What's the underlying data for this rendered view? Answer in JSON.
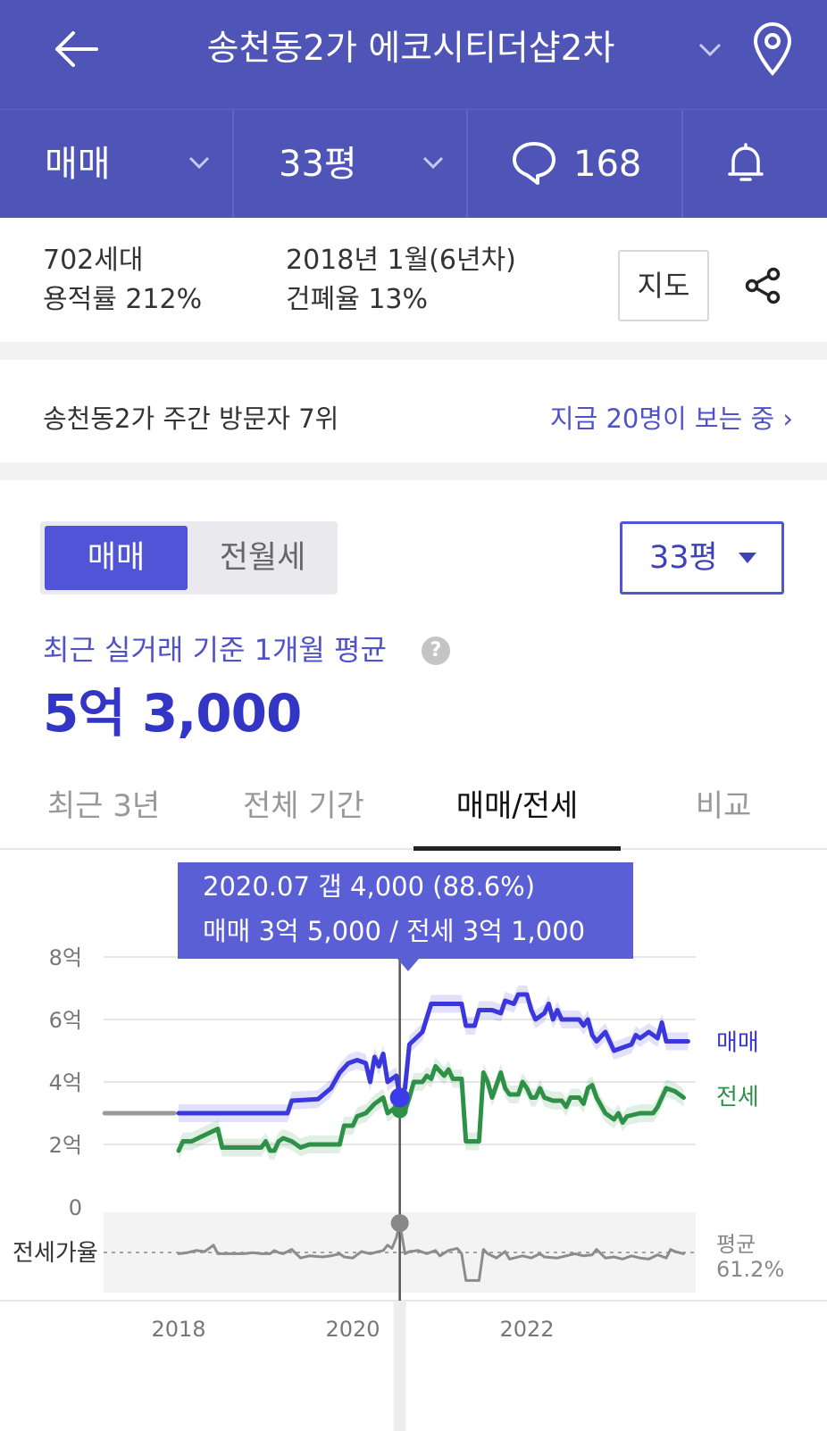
{
  "header": {
    "title": "송천동2가 에코시티더샵2차",
    "back_icon": "arrow-left-icon",
    "dropdown_icon": "chevron-down-icon",
    "location_icon": "location-pin-icon"
  },
  "subbar": {
    "trade_type": "매매",
    "area": "33평",
    "comment_count": "168",
    "comment_icon": "speech-bubble-icon",
    "alarm_icon": "bell-icon"
  },
  "info": {
    "households": "702세대",
    "floor_area_ratio": "용적률 212%",
    "built": "2018년 1월(6년차)",
    "coverage_ratio": "건폐율 13%",
    "map_button": "지도",
    "share_icon": "share-icon"
  },
  "visitors": {
    "rank_text": "송천동2가 주간 방문자 7위",
    "now_text": "지금 20명이 보는 중 ›"
  },
  "price_panel": {
    "segment_on": "매매",
    "segment_off": "전월세",
    "size_select": "33평",
    "avg_label": "최근 실거래 기준 1개월 평균",
    "avg_value": "5억 3,000"
  },
  "tabs": [
    {
      "label": "최근 3년"
    },
    {
      "label": "전체 기간"
    },
    {
      "label": "매매/전세"
    },
    {
      "label": "비교"
    }
  ],
  "colors": {
    "brand": "#4f55b7",
    "sale": "#3b37dc",
    "jeonse": "#2e9147",
    "ratio": "#8c8c8c",
    "tooltip": "#5b5fd6"
  },
  "chart_data": {
    "type": "line",
    "tooltip": {
      "line1": "2020.07  갭 4,000 (88.6%)",
      "line2": "매매 3억 5,000 / 전세 3억 1,000",
      "x": 2020.54
    },
    "y_ticks": [
      "0",
      "2억",
      "4억",
      "6억",
      "8억"
    ],
    "ylim": [
      0,
      8
    ],
    "x_ticks": [
      "2018",
      "2020",
      "2022"
    ],
    "xlim": [
      2017.15,
      2023.95
    ],
    "ratio_label": "전세가율",
    "ratio_avg_label": "평균",
    "ratio_avg_value": "61.2%",
    "series": [
      {
        "name": "매매",
        "unit": "억",
        "points": [
          [
            2018.0,
            3.0
          ],
          [
            2018.5,
            3.0
          ],
          [
            2019.0,
            3.0
          ],
          [
            2019.25,
            3.0
          ],
          [
            2019.3,
            3.4
          ],
          [
            2019.6,
            3.45
          ],
          [
            2019.75,
            3.8
          ],
          [
            2019.85,
            4.3
          ],
          [
            2019.95,
            4.6
          ],
          [
            2020.05,
            4.7
          ],
          [
            2020.15,
            4.6
          ],
          [
            2020.2,
            4.0
          ],
          [
            2020.25,
            4.8
          ],
          [
            2020.3,
            4.5
          ],
          [
            2020.35,
            4.9
          ],
          [
            2020.4,
            4.0
          ],
          [
            2020.5,
            4.2
          ],
          [
            2020.54,
            3.5
          ],
          [
            2020.6,
            3.8
          ],
          [
            2020.65,
            5.2
          ],
          [
            2020.8,
            5.6
          ],
          [
            2020.9,
            6.5
          ],
          [
            2021.0,
            6.5
          ],
          [
            2021.1,
            6.5
          ],
          [
            2021.2,
            6.5
          ],
          [
            2021.25,
            6.5
          ],
          [
            2021.3,
            5.8
          ],
          [
            2021.4,
            5.8
          ],
          [
            2021.45,
            6.3
          ],
          [
            2021.6,
            6.3
          ],
          [
            2021.7,
            6.2
          ],
          [
            2021.75,
            6.6
          ],
          [
            2021.85,
            6.5
          ],
          [
            2021.9,
            6.8
          ],
          [
            2022.0,
            6.8
          ],
          [
            2022.05,
            6.3
          ],
          [
            2022.1,
            6.0
          ],
          [
            2022.2,
            6.2
          ],
          [
            2022.25,
            6.5
          ],
          [
            2022.3,
            6.0
          ],
          [
            2022.35,
            6.3
          ],
          [
            2022.4,
            6.0
          ],
          [
            2022.6,
            6.0
          ],
          [
            2022.65,
            5.8
          ],
          [
            2022.7,
            6.0
          ],
          [
            2022.75,
            5.5
          ],
          [
            2022.8,
            5.3
          ],
          [
            2022.9,
            5.6
          ],
          [
            2023.0,
            5.0
          ],
          [
            2023.1,
            5.1
          ],
          [
            2023.2,
            5.2
          ],
          [
            2023.25,
            5.5
          ],
          [
            2023.3,
            5.4
          ],
          [
            2023.4,
            5.6
          ],
          [
            2023.5,
            5.4
          ],
          [
            2023.55,
            5.9
          ],
          [
            2023.6,
            5.3
          ],
          [
            2023.85,
            5.3
          ]
        ]
      },
      {
        "name": "전세",
        "unit": "억",
        "points": [
          [
            2018.0,
            1.8
          ],
          [
            2018.05,
            2.1
          ],
          [
            2018.15,
            2.1
          ],
          [
            2018.3,
            2.3
          ],
          [
            2018.45,
            2.5
          ],
          [
            2018.5,
            1.9
          ],
          [
            2018.65,
            1.9
          ],
          [
            2018.95,
            1.9
          ],
          [
            2019.0,
            2.1
          ],
          [
            2019.05,
            1.8
          ],
          [
            2019.1,
            1.8
          ],
          [
            2019.15,
            2.1
          ],
          [
            2019.2,
            2.2
          ],
          [
            2019.3,
            2.1
          ],
          [
            2019.4,
            1.9
          ],
          [
            2019.5,
            2.0
          ],
          [
            2019.65,
            2.0
          ],
          [
            2019.85,
            2.0
          ],
          [
            2019.9,
            2.6
          ],
          [
            2020.0,
            2.6
          ],
          [
            2020.05,
            2.9
          ],
          [
            2020.15,
            3.0
          ],
          [
            2020.25,
            3.3
          ],
          [
            2020.35,
            3.5
          ],
          [
            2020.4,
            3.0
          ],
          [
            2020.5,
            3.2
          ],
          [
            2020.54,
            3.1
          ],
          [
            2020.6,
            3.1
          ],
          [
            2020.65,
            3.5
          ],
          [
            2020.7,
            4.0
          ],
          [
            2020.8,
            4.0
          ],
          [
            2020.85,
            4.2
          ],
          [
            2020.9,
            4.1
          ],
          [
            2020.95,
            4.5
          ],
          [
            2021.05,
            4.2
          ],
          [
            2021.1,
            4.4
          ],
          [
            2021.15,
            4.1
          ],
          [
            2021.25,
            4.1
          ],
          [
            2021.3,
            2.1
          ],
          [
            2021.45,
            2.1
          ],
          [
            2021.5,
            4.3
          ],
          [
            2021.55,
            4.0
          ],
          [
            2021.6,
            3.5
          ],
          [
            2021.7,
            4.3
          ],
          [
            2021.75,
            3.8
          ],
          [
            2021.8,
            3.6
          ],
          [
            2021.9,
            3.6
          ],
          [
            2021.95,
            4.0
          ],
          [
            2022.0,
            3.8
          ],
          [
            2022.05,
            3.5
          ],
          [
            2022.1,
            3.5
          ],
          [
            2022.15,
            3.8
          ],
          [
            2022.2,
            3.5
          ],
          [
            2022.3,
            3.4
          ],
          [
            2022.4,
            3.4
          ],
          [
            2022.45,
            3.2
          ],
          [
            2022.5,
            3.5
          ],
          [
            2022.6,
            3.5
          ],
          [
            2022.65,
            3.3
          ],
          [
            2022.7,
            3.8
          ],
          [
            2022.75,
            3.9
          ],
          [
            2022.8,
            3.5
          ],
          [
            2022.9,
            3.0
          ],
          [
            2023.0,
            2.8
          ],
          [
            2023.05,
            3.0
          ],
          [
            2023.1,
            2.7
          ],
          [
            2023.15,
            2.9
          ],
          [
            2023.3,
            3.0
          ],
          [
            2023.45,
            3.0
          ],
          [
            2023.5,
            3.2
          ],
          [
            2023.55,
            3.5
          ],
          [
            2023.6,
            3.8
          ],
          [
            2023.7,
            3.7
          ],
          [
            2023.8,
            3.5
          ]
        ]
      },
      {
        "name": "전세가율",
        "unit": "%",
        "points": [
          [
            2018.0,
            60
          ],
          [
            2018.1,
            61
          ],
          [
            2018.2,
            63
          ],
          [
            2018.3,
            62
          ],
          [
            2018.4,
            68
          ],
          [
            2018.45,
            60
          ],
          [
            2018.6,
            60
          ],
          [
            2018.75,
            60
          ],
          [
            2018.85,
            61
          ],
          [
            2018.95,
            60
          ],
          [
            2019.05,
            60
          ],
          [
            2019.1,
            63
          ],
          [
            2019.15,
            61
          ],
          [
            2019.2,
            60
          ],
          [
            2019.3,
            64
          ],
          [
            2019.35,
            60
          ],
          [
            2019.4,
            56
          ],
          [
            2019.5,
            58
          ],
          [
            2019.65,
            57
          ],
          [
            2019.75,
            58
          ],
          [
            2019.85,
            60
          ],
          [
            2019.9,
            57
          ],
          [
            2020.0,
            56
          ],
          [
            2020.1,
            62
          ],
          [
            2020.2,
            60
          ],
          [
            2020.3,
            62
          ],
          [
            2020.35,
            63
          ],
          [
            2020.4,
            68
          ],
          [
            2020.45,
            65
          ],
          [
            2020.5,
            75
          ],
          [
            2020.54,
            88.6
          ],
          [
            2020.6,
            60
          ],
          [
            2020.65,
            62
          ],
          [
            2020.75,
            63
          ],
          [
            2020.85,
            60
          ],
          [
            2020.95,
            63
          ],
          [
            2021.0,
            58
          ],
          [
            2021.1,
            63
          ],
          [
            2021.2,
            65
          ],
          [
            2021.25,
            60
          ],
          [
            2021.3,
            35
          ],
          [
            2021.45,
            35
          ],
          [
            2021.5,
            64
          ],
          [
            2021.55,
            60
          ],
          [
            2021.65,
            56
          ],
          [
            2021.75,
            62
          ],
          [
            2021.8,
            55
          ],
          [
            2021.95,
            58
          ],
          [
            2022.05,
            56
          ],
          [
            2022.15,
            60
          ],
          [
            2022.2,
            57
          ],
          [
            2022.35,
            56
          ],
          [
            2022.45,
            58
          ],
          [
            2022.55,
            60
          ],
          [
            2022.65,
            58
          ],
          [
            2022.75,
            59
          ],
          [
            2022.8,
            64
          ],
          [
            2022.9,
            56
          ],
          [
            2023.0,
            57
          ],
          [
            2023.1,
            55
          ],
          [
            2023.2,
            58
          ],
          [
            2023.3,
            56
          ],
          [
            2023.4,
            55
          ],
          [
            2023.5,
            59
          ],
          [
            2023.6,
            56
          ],
          [
            2023.65,
            64
          ],
          [
            2023.7,
            62
          ],
          [
            2023.8,
            60
          ]
        ]
      },
      {
        "name": "이전 값",
        "unit": "억",
        "points": [
          [
            2017.15,
            3.0
          ],
          [
            2017.95,
            3.0
          ]
        ]
      }
    ]
  }
}
